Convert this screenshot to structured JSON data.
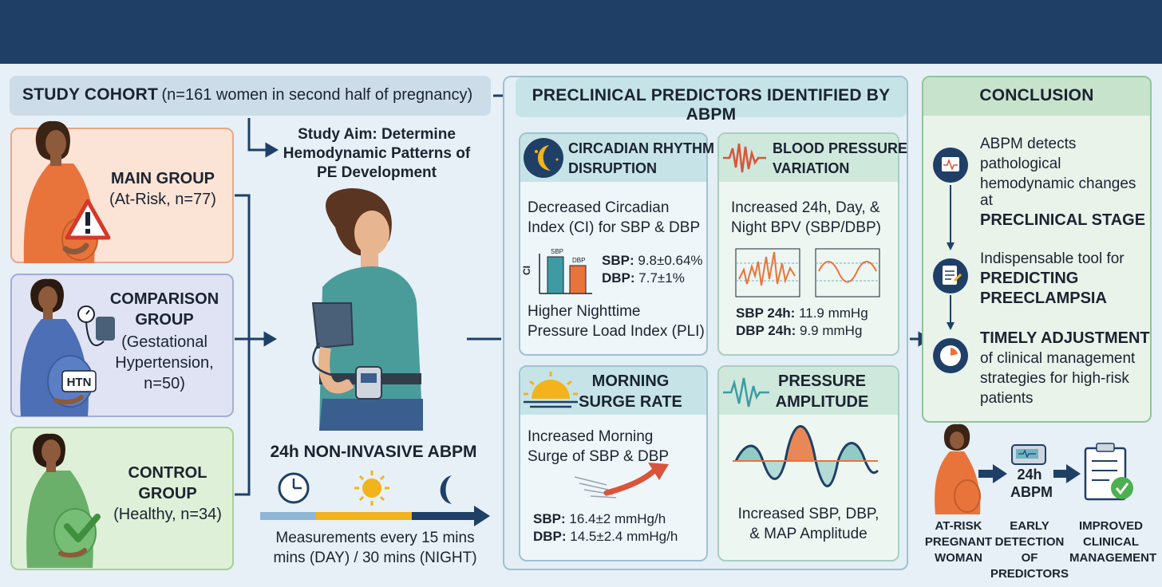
{
  "cohort": {
    "title": "STUDY COHORT",
    "detail": "(n=161 women in second half of pregnancy)",
    "aim": "Study Aim: Determine Hemodynamic Patterns of PE Development"
  },
  "groups": [
    {
      "name_line1": "MAIN GROUP",
      "name_line2": "",
      "detail_line1": "(At-Risk, n=77)",
      "detail_line2": "",
      "detail_line3": "",
      "color": "#fbe3d6"
    },
    {
      "name_line1": "COMPARISON",
      "name_line2": "GROUP",
      "detail_line1": "(Gestational",
      "detail_line2": "Hypertension,",
      "detail_line3": "n=50)",
      "color": "#dfe3f3",
      "badge": "HTN"
    },
    {
      "name_line1": "CONTROL",
      "name_line2": "GROUP",
      "detail_line1": "(Healthy, n=34)",
      "detail_line2": "",
      "detail_line3": "",
      "color": "#dff0d8"
    }
  ],
  "abpm": {
    "title": "24h NON-INVASIVE ABPM",
    "note_line1": "Measurements every 15 mins",
    "note_line2": "mins (DAY) / 30 mins (NIGHT)"
  },
  "predictors": {
    "title": "PRECLINICAL PREDICTORS IDENTIFIED BY ABPM",
    "circadian": {
      "title_line1": "CIRCADIAN RHYTHM",
      "title_line2": "DISRUPTION",
      "desc_line1": "Decreased Circadian",
      "desc_line2": "Index (CI) for SBP & DBP",
      "axis_label": "CI",
      "bar_labels": [
        "SBP",
        "DBP"
      ],
      "sbp_label": "SBP:",
      "sbp_value": "9.8±0.64%",
      "dbp_label": "DBP:",
      "dbp_value": "7.7±1%",
      "extra_line1": "Higher Nighttime",
      "extra_line2": "Pressure Load Index (PLI)"
    },
    "bpv": {
      "title_line1": "BLOOD PRESSURE",
      "title_line2": "VARIATION",
      "desc_line1": "Increased 24h, Day, &",
      "desc_line2": "Night BPV (SBP/DBP)",
      "sbp_label": "SBP 24h:",
      "sbp_value": "11.9 mmHg",
      "dbp_label": "DBP 24h:",
      "dbp_value": "9.9 mmHg"
    },
    "surge": {
      "title_line1": "MORNING",
      "title_line2": "SURGE RATE",
      "desc_line1": "Increased Morning",
      "desc_line2": "Surge of SBP & DBP",
      "sbp_label": "SBP:",
      "sbp_value": "16.4±2 mmHg/h",
      "dbp_label": "DBP:",
      "dbp_value": "14.5±2.4 mmHg/h"
    },
    "amplitude": {
      "title_line1": "PRESSURE",
      "title_line2": "AMPLITUDE",
      "desc_line1": "Increased SBP, DBP,",
      "desc_line2": "& MAP Amplitude"
    }
  },
  "conclusion": {
    "title": "CONCLUSION",
    "item1_lines": [
      "ABPM detects",
      "pathological",
      "hemodynamic changes",
      "at"
    ],
    "item1_bold": "PRECLINICAL STAGE",
    "item2_line": "Indispensable tool for",
    "item2_bold1": "PREDICTING",
    "item2_bold2": "PREECLAMPSIA",
    "item3_bold": "TIMELY ADJUSTMENT",
    "item3_lines": [
      "of clinical management",
      "strategies for high-risk",
      "patients"
    ]
  },
  "flow": {
    "step1": [
      "AT-RISK",
      "PREGNANT",
      "WOMAN"
    ],
    "step2_top": [
      "24h",
      "ABPM"
    ],
    "step2": [
      "EARLY",
      "DETECTION OF",
      "PREDICTORS"
    ],
    "step3": [
      "IMPROVED",
      "CLINICAL",
      "MANAGEMENT"
    ]
  },
  "colors": {
    "navy": "#1f3f66",
    "teal": "#3e9ba3",
    "orange": "#e8743b",
    "sun": "#f2b31d"
  }
}
